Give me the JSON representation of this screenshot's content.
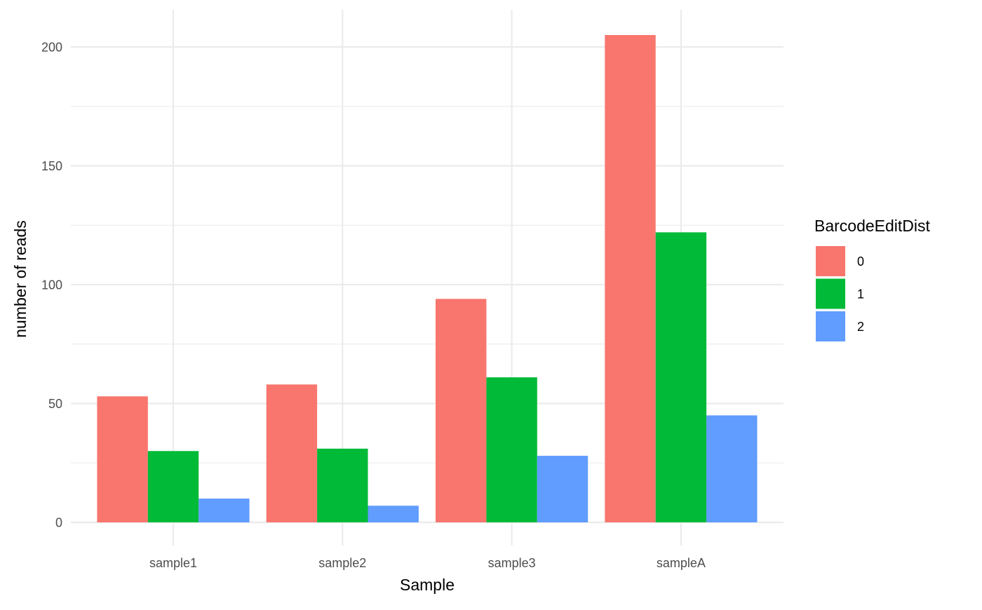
{
  "chart_data": {
    "type": "bar",
    "categories": [
      "sample1",
      "sample2",
      "sample3",
      "sampleA"
    ],
    "series": [
      {
        "name": "0",
        "color": "#F8766D",
        "values": [
          53,
          58,
          94,
          205
        ]
      },
      {
        "name": "1",
        "color": "#00BA38",
        "values": [
          30,
          31,
          61,
          122
        ]
      },
      {
        "name": "2",
        "color": "#619CFF",
        "values": [
          10,
          7,
          28,
          45
        ]
      }
    ],
    "title": "",
    "xlabel": "Sample",
    "ylabel": "number of reads",
    "ylim": [
      0,
      215
    ],
    "yticks": [
      0,
      50,
      100,
      150,
      200
    ],
    "ytick_labels": [
      "0",
      "50",
      "100",
      "150",
      "200"
    ],
    "grid": true,
    "legend": {
      "title": "BarcodeEditDist",
      "placement": "right"
    }
  }
}
